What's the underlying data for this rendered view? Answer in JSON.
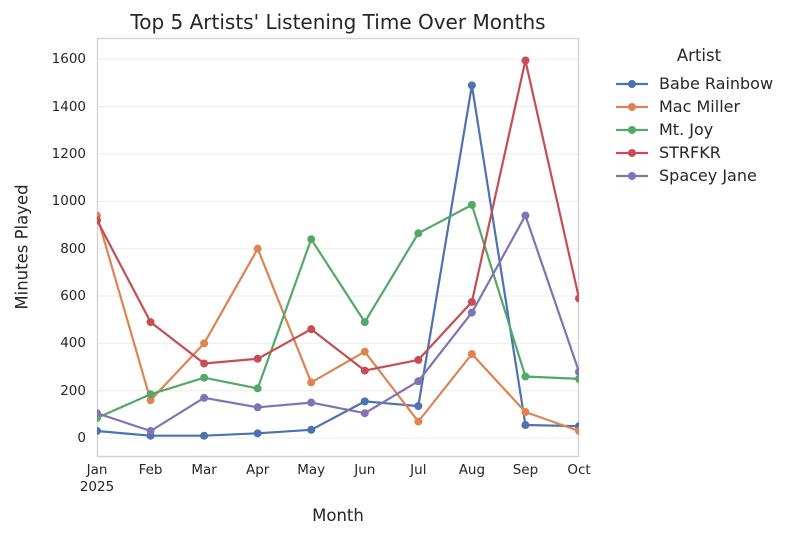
{
  "chart_data": {
    "type": "line",
    "title": "Top 5 Artists' Listening Time Over Months",
    "xlabel": "Month",
    "ylabel": "Minutes Played",
    "legend_title": "Artist",
    "legend_position": "outside-top-right",
    "grid": true,
    "background": "#ffffff",
    "spine_color": "#d3d3d3",
    "grid_color": "#efefef",
    "text_color": "#262626",
    "categories": [
      "Jan\n2025",
      "Feb",
      "Mar",
      "Apr",
      "May",
      "Jun",
      "Jul",
      "Aug",
      "Sep",
      "Oct"
    ],
    "yticks": [
      0,
      200,
      400,
      600,
      800,
      1000,
      1200,
      1400,
      1600
    ],
    "ylim": [
      -80,
      1690
    ],
    "series": [
      {
        "name": "Babe Rainbow",
        "color": "#4C72B0",
        "values": [
          30,
          10,
          10,
          20,
          35,
          155,
          135,
          1490,
          55,
          50
        ]
      },
      {
        "name": "Mac Miller",
        "color": "#DD8452",
        "values": [
          940,
          160,
          400,
          800,
          235,
          365,
          70,
          355,
          110,
          30
        ]
      },
      {
        "name": "Mt. Joy",
        "color": "#55A868",
        "values": [
          85,
          185,
          255,
          210,
          840,
          490,
          865,
          985,
          260,
          250
        ]
      },
      {
        "name": "STRFKR",
        "color": "#C44E52",
        "values": [
          920,
          490,
          315,
          335,
          460,
          285,
          330,
          575,
          1595,
          590
        ]
      },
      {
        "name": "Spacey Jane",
        "color": "#8172B3",
        "values": [
          105,
          30,
          170,
          130,
          150,
          105,
          240,
          530,
          940,
          280
        ]
      }
    ]
  }
}
